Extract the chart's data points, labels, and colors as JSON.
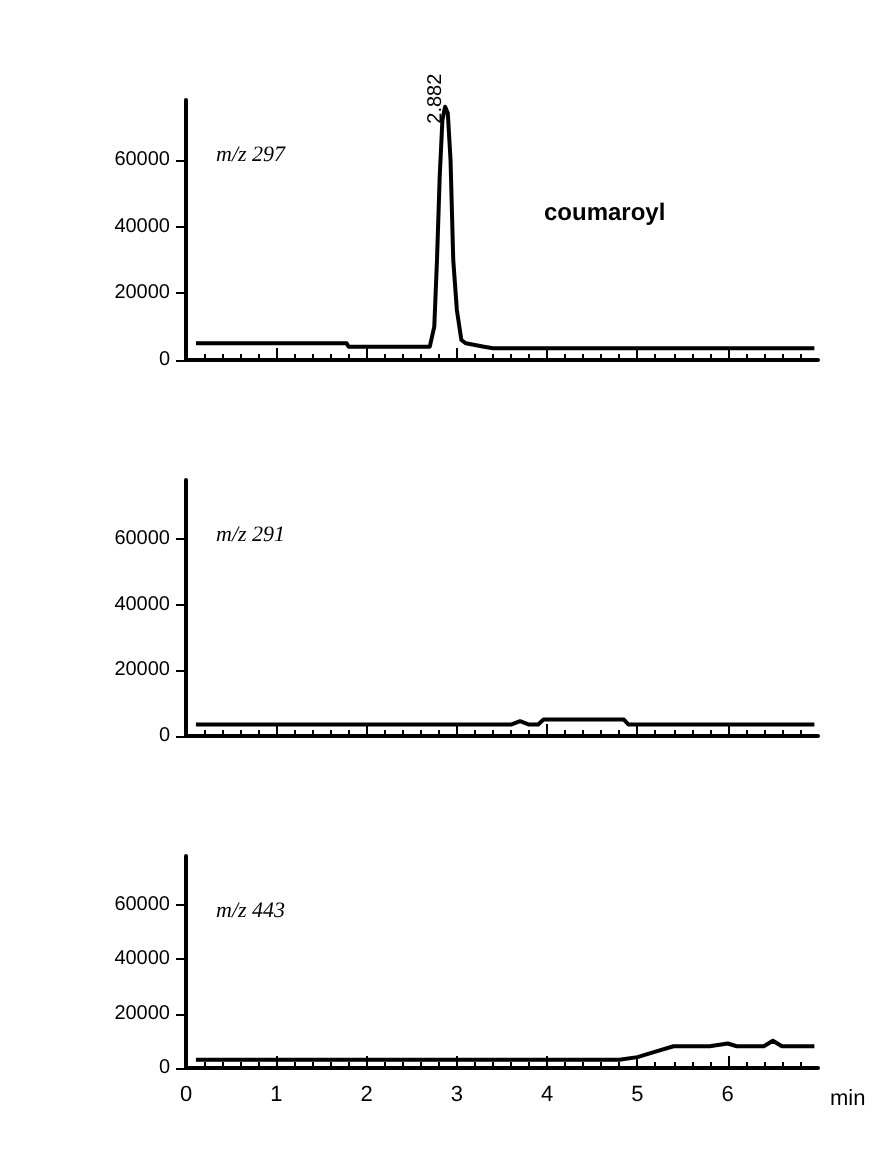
{
  "chart_data": [
    {
      "type": "line",
      "annotations": [
        "m/z 297",
        "coumaroyl",
        {
          "text": "2.882",
          "x": 2.882,
          "y": 76000
        }
      ],
      "color": "#000000",
      "marker": "none",
      "tick_labels": "y",
      "x": [
        0.11,
        1.0,
        1.78,
        1.8,
        2.5,
        2.7,
        2.75,
        2.78,
        2.81,
        2.84,
        2.87,
        2.9,
        2.93,
        2.96,
        3.0,
        3.05,
        3.1,
        3.3,
        3.4,
        4.0,
        5.0,
        6.0,
        6.96
      ],
      "values": [
        5000,
        5000,
        5000,
        4000,
        4000,
        4000,
        10000,
        30000,
        55000,
        72000,
        76000,
        74000,
        60000,
        30000,
        15000,
        6000,
        5000,
        4000,
        3500,
        3500,
        3500,
        3500,
        3500
      ],
      "xlim": [
        0,
        7
      ],
      "xticks": [
        0,
        1,
        2,
        3,
        4,
        5,
        6
      ],
      "ylim": [
        0,
        78000
      ],
      "yticks": [
        0,
        20000,
        40000,
        60000
      ]
    },
    {
      "type": "line",
      "annotations": [
        "m/z 291"
      ],
      "color": "#000000",
      "marker": "none",
      "tick_labels": "y",
      "x": [
        0.11,
        1.0,
        2.0,
        3.0,
        3.6,
        3.7,
        3.8,
        3.9,
        3.96,
        4.5,
        4.85,
        4.9,
        6.0,
        6.96
      ],
      "values": [
        3500,
        3500,
        3500,
        3500,
        3500,
        4500,
        3500,
        3500,
        5000,
        5000,
        5000,
        3500,
        3500,
        3500
      ],
      "xlim": [
        0,
        7
      ],
      "xticks": [
        0,
        1,
        2,
        3,
        4,
        5,
        6
      ],
      "ylim": [
        0,
        78000
      ],
      "yticks": [
        0,
        20000,
        40000,
        60000
      ]
    },
    {
      "type": "line",
      "annotations": [
        "m/z 443"
      ],
      "color": "#000000",
      "marker": "none",
      "xlabel": "min",
      "x": [
        0.11,
        1.0,
        2.0,
        3.0,
        4.0,
        4.8,
        5.0,
        5.2,
        5.4,
        5.8,
        6.0,
        6.1,
        6.4,
        6.5,
        6.6,
        6.96
      ],
      "values": [
        3000,
        3000,
        3000,
        3000,
        3000,
        3000,
        4000,
        6000,
        8000,
        8000,
        9000,
        8000,
        8000,
        10000,
        8000,
        8000
      ],
      "xlim": [
        0,
        7
      ],
      "xticks": [
        0,
        1,
        2,
        3,
        4,
        5,
        6
      ],
      "ylim": [
        0,
        78000
      ],
      "yticks": [
        0,
        20000,
        40000,
        60000
      ]
    }
  ]
}
